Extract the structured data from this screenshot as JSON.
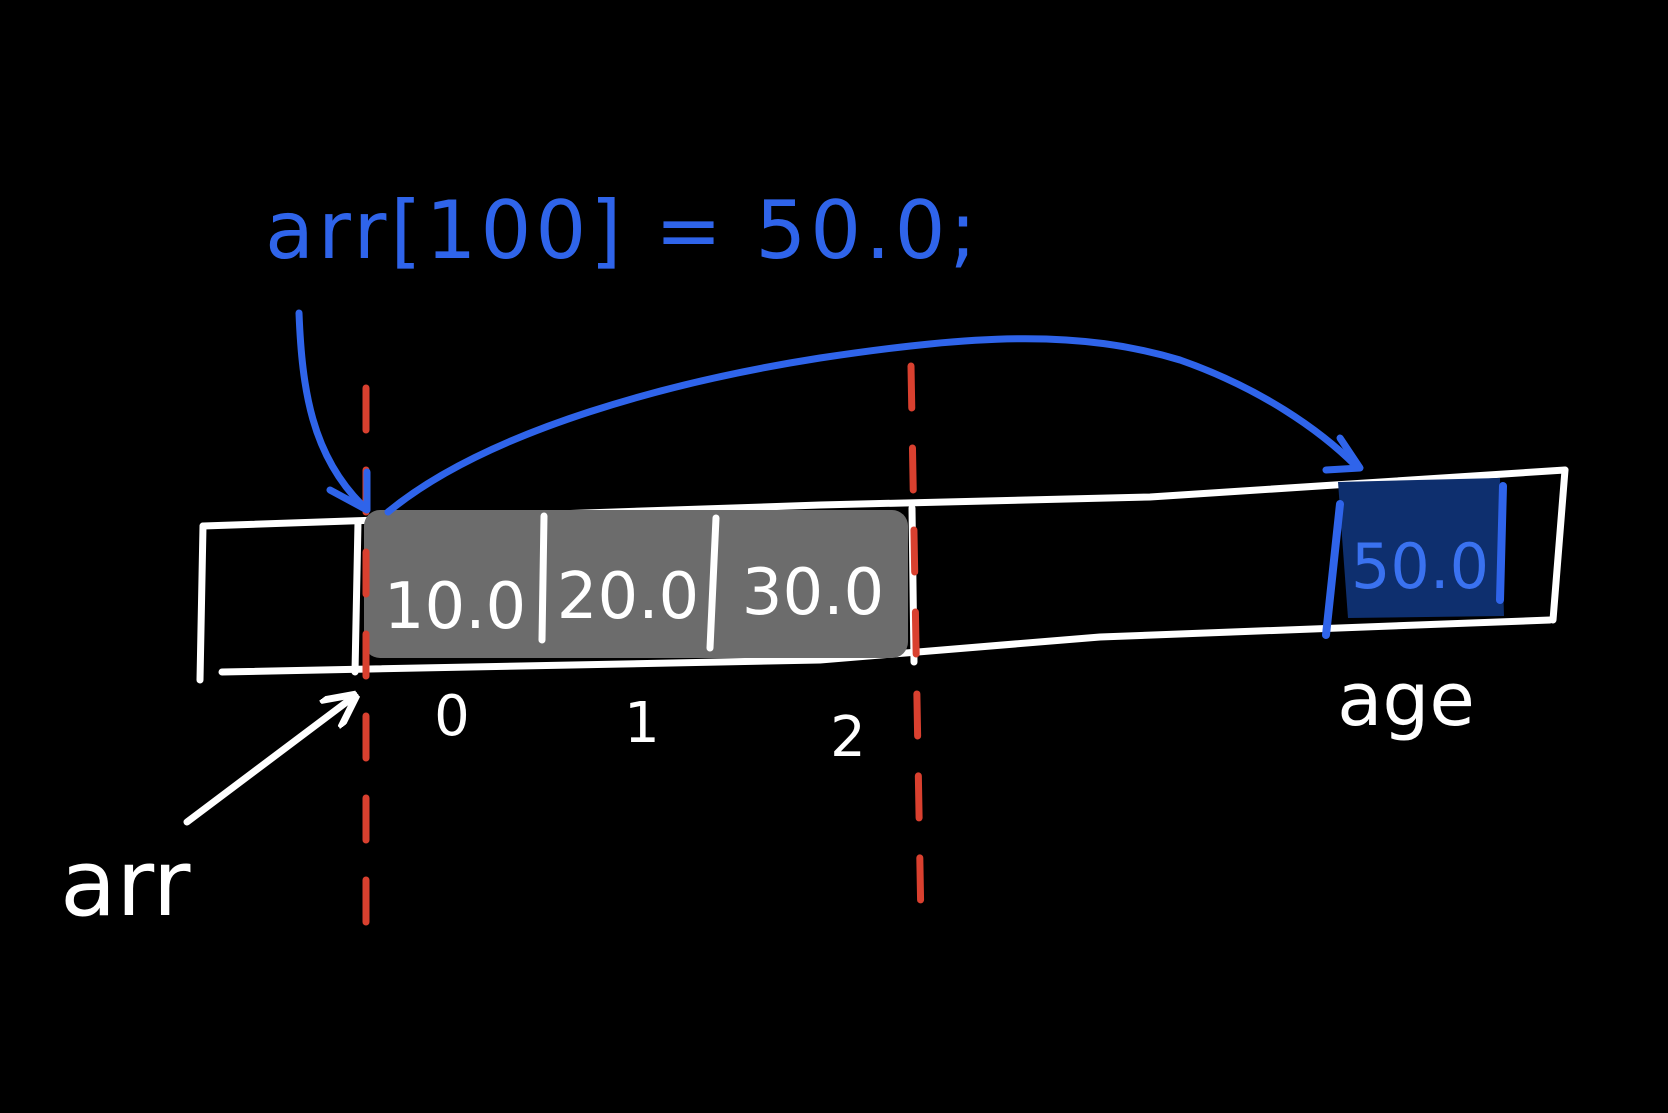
{
  "colors": {
    "background": "#000000",
    "outline": "#ffffff",
    "bounds_marker": "#d9402f",
    "code_and_arrow": "#2f64ea",
    "filled_cell": "#6c6c6c",
    "age_cell_fill": "#0e2f6e",
    "age_cell_text": "#3a72f0"
  },
  "code_statement": "arr[100] = 50.0;",
  "array_cells": [
    {
      "value": "10.0",
      "index": "0"
    },
    {
      "value": "20.0",
      "index": "1"
    },
    {
      "value": "30.0",
      "index": "2"
    }
  ],
  "age_cell": {
    "value": "50.0",
    "label": "age"
  },
  "pointer_label": "arr"
}
